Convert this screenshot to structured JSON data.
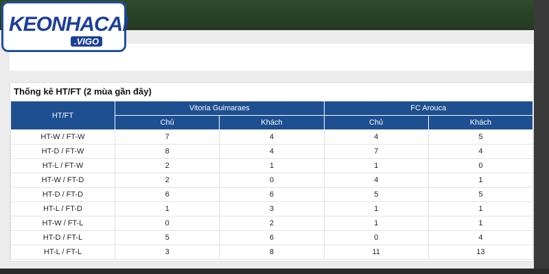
{
  "logo": {
    "name": "KEONHACAI",
    "domain": ".VIGO"
  },
  "table": {
    "title": "Thống kê HT/FT (2 mùa gần đây)",
    "corner": "HT/FT",
    "teams": [
      "Vitoria Guimaraes",
      "FC Arouca"
    ],
    "subheaders": [
      "Chủ",
      "Khách",
      "Chủ",
      "Khách"
    ],
    "rows": [
      {
        "label": "HT-W / FT-W",
        "values": [
          7,
          4,
          4,
          5
        ]
      },
      {
        "label": "HT-D / FT-W",
        "values": [
          8,
          4,
          7,
          4
        ]
      },
      {
        "label": "HT-L / FT-W",
        "values": [
          2,
          1,
          1,
          0
        ]
      },
      {
        "label": "HT-W / FT-D",
        "values": [
          2,
          0,
          4,
          1
        ]
      },
      {
        "label": "HT-D / FT-D",
        "values": [
          6,
          6,
          5,
          5
        ]
      },
      {
        "label": "HT-L / FT-D",
        "values": [
          1,
          3,
          1,
          1
        ]
      },
      {
        "label": "HT-W / FT-L",
        "values": [
          0,
          2,
          1,
          1
        ]
      },
      {
        "label": "HT-D / FT-L",
        "values": [
          5,
          6,
          0,
          4
        ]
      },
      {
        "label": "HT-L / FT-L",
        "values": [
          3,
          8,
          11,
          13
        ]
      }
    ]
  }
}
